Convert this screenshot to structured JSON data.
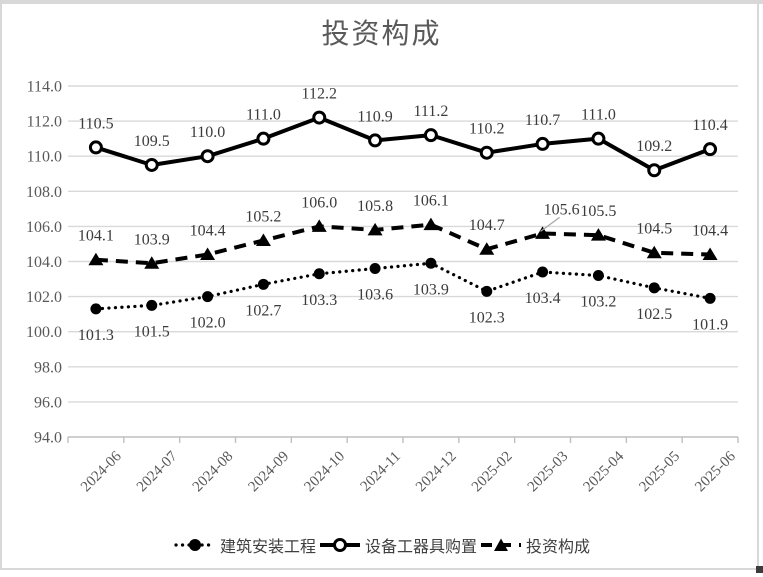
{
  "chart_data": {
    "type": "line",
    "title": "投资构成",
    "categories": [
      "2024-06",
      "2024-07",
      "2024-08",
      "2024-09",
      "2024-10",
      "2024-11",
      "2024-12",
      "2025-02",
      "2025-03",
      "2025-04",
      "2025-05",
      "2025-06"
    ],
    "series": [
      {
        "name": "建筑安装工程",
        "values": [
          101.3,
          101.5,
          102.0,
          102.7,
          103.3,
          103.6,
          103.9,
          102.3,
          103.4,
          103.2,
          102.5,
          101.9
        ],
        "marker": "filled-circle",
        "line": "dotted",
        "label_position": "below"
      },
      {
        "name": "设备工器具购置",
        "values": [
          110.5,
          109.5,
          110.0,
          111.0,
          112.2,
          110.9,
          111.2,
          110.2,
          110.7,
          111.0,
          109.2,
          110.4
        ],
        "marker": "open-circle",
        "line": "solid",
        "label_position": "above"
      },
      {
        "name": "投资构成",
        "values": [
          104.1,
          103.9,
          104.4,
          105.2,
          106.0,
          105.8,
          106.1,
          104.7,
          105.6,
          105.5,
          104.5,
          104.4
        ],
        "marker": "filled-triangle",
        "line": "dashed",
        "label_position": "above",
        "label_overrides": [
          {
            "index": 8,
            "dx": 19,
            "dy": 0,
            "leader": true
          }
        ]
      }
    ],
    "xlabel": "",
    "ylabel": "",
    "ylim": [
      94.0,
      114.0
    ],
    "ytick_step": 2.0,
    "ytick_format_decimals": 1,
    "grid": true,
    "legend_position": "bottom",
    "colors": {
      "series": "#000000",
      "grid": "#d9d9d9",
      "axis": "#bfbfbf",
      "data_label": "#3b3b3b",
      "axis_text": "#595959",
      "title": "#595959",
      "leader_line": "#a6a6a6"
    }
  }
}
